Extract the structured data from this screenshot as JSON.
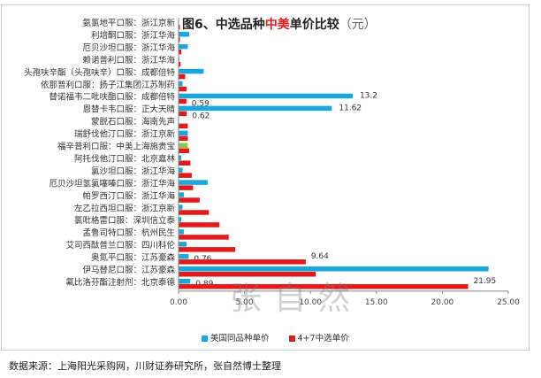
{
  "chart_data": {
    "type": "bar",
    "orientation": "horizontal",
    "title": "图6、中选品种中美单价比较",
    "title_parts": [
      "图6、中选品种",
      "中美",
      "单价比较"
    ],
    "unit": "（元）",
    "xlim": [
      0,
      25
    ],
    "xticks": [
      "0.00",
      "5.00",
      "10.00",
      "15.00",
      "20.00",
      "25.00"
    ],
    "categories": [
      "氨氯地平口服：浙江京新",
      "利培酮口服：浙江华海",
      "厄贝沙坦口服：浙江华海",
      "赖诺普利口服：浙江华海",
      "头孢呋辛酯（头孢呋辛）口服：成都倍特",
      "依那普利口服：扬子江集团江苏制药",
      "替诺福韦二吡呋酯口服：成都倍特",
      "恩替卡韦口服：正大天晴",
      "蒙脱石口服：海南先声",
      "瑞舒伐他汀口服：浙江京新",
      "福辛普利口服：中美上海施贵宝",
      "阿托伐他汀口服：北京嘉林",
      "氯沙坦口服：浙江华海",
      "厄贝沙坦氢氯噻嗪口服：浙江华海",
      "帕罗西汀口服：浙江华海",
      "左乙拉西坦口服：浙江京新",
      "氯吡格雷口服：深圳信立泰",
      "孟鲁司特口服：杭州民生",
      "艾司西酞普兰口服：四川科伦",
      "奥氮平口服：江苏豪森",
      "伊马替尼口服：江苏豪森",
      "氟比洛芬酯注射剂：北京泰德"
    ],
    "series": [
      {
        "name": "美国同品种单价",
        "color": "#1aa7dc",
        "values": [
          0,
          0.8,
          0.7,
          0.05,
          1.9,
          0.3,
          13.2,
          11.62,
          0,
          0.7,
          0.7,
          0.2,
          0.3,
          2.2,
          0.4,
          0.3,
          0.2,
          0.4,
          0.6,
          0.76,
          23.5,
          0.89
        ],
        "labels": {
          "6": "13.2",
          "7": "11.62",
          "19": "0.76",
          "21": "0.89"
        }
      },
      {
        "name": "4+7中选单价",
        "color": "#e3191b",
        "values": [
          0.1,
          0.1,
          0.2,
          0.15,
          0.5,
          0.6,
          0.59,
          0.62,
          0.7,
          0.7,
          0.8,
          0.9,
          1.0,
          1.1,
          1.6,
          2.3,
          3.1,
          3.8,
          4.3,
          9.64,
          10.4,
          21.95
        ],
        "labels": {
          "6": "0.59",
          "7": "0.62",
          "19": "9.64",
          "21": "21.95"
        }
      }
    ],
    "highlight": {
      "index": 10,
      "series": 0,
      "color": "#8dc63f"
    },
    "legend": "bottom",
    "legend_labels": [
      "美国同品种单价",
      "4+7中选单价"
    ]
  },
  "watermark": "张自然",
  "source": "数据来源：上海阳光采购网，川财证券研究所，张自然博士整理"
}
